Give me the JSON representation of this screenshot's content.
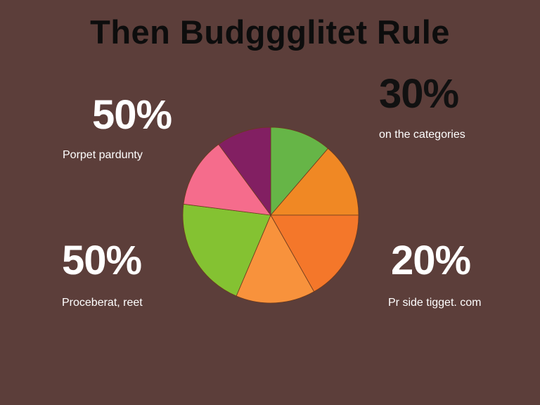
{
  "chart_data": {
    "type": "pie",
    "title": "Then Budggglitet Rule",
    "start_angle_deg": 0,
    "direction": "clockwise",
    "slices": [
      {
        "value": 11.3,
        "color": "#66b547"
      },
      {
        "value": 13.7,
        "color": "#f08824"
      },
      {
        "value": 16.8,
        "color": "#f4772a"
      },
      {
        "value": 14.6,
        "color": "#f8923c"
      },
      {
        "value": 20.6,
        "color": "#84c232"
      },
      {
        "value": 12.9,
        "color": "#f56c8c"
      },
      {
        "value": 10.1,
        "color": "#821f62"
      }
    ],
    "annotations": [
      {
        "value": "50%",
        "caption": "Porpet pardunty",
        "position": "top-left",
        "value_color": "#ffffff"
      },
      {
        "value": "30%",
        "caption": "on the categories",
        "position": "top-right",
        "value_color": "#111111"
      },
      {
        "value": "50%",
        "caption": "Proceberat, reet",
        "position": "bottom-left",
        "value_color": "#ffffff"
      },
      {
        "value": "20%",
        "caption": "Pr side tigget. com",
        "position": "bottom-right",
        "value_color": "#ffffff"
      }
    ]
  },
  "colors": {
    "background": "#5c3e3a",
    "slice_border": "#6b3a1e"
  }
}
